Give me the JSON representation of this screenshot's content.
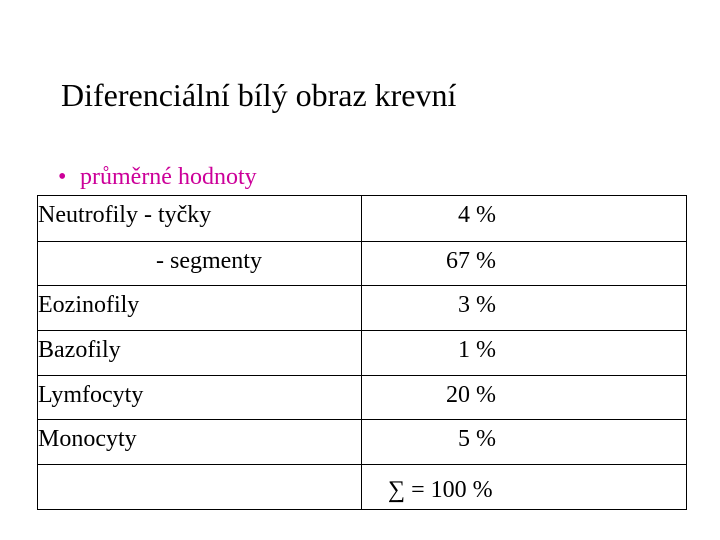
{
  "slide": {
    "title": "Diferenciální bílý obraz krevní",
    "bullet_marker": "•",
    "bullet_text": "průměrné hodnoty",
    "bullet_color": "#cc0099"
  },
  "table": {
    "rows": [
      {
        "label": "Neutrofily - tyčky",
        "value": "4 %"
      },
      {
        "label": "- segmenty",
        "value": "67 %"
      },
      {
        "label": "Eozinofily",
        "value": "3 %"
      },
      {
        "label": "Bazofily",
        "value": "1 %"
      },
      {
        "label": "Lymfocyty",
        "value": "20 %"
      },
      {
        "label": "Monocyty",
        "value": "5 %"
      },
      {
        "label": "",
        "value": "∑ = 100 %"
      }
    ]
  }
}
